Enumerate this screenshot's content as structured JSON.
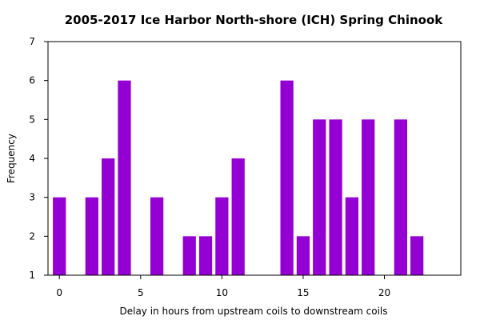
{
  "chart_data": {
    "type": "bar",
    "title": "2005-2017 Ice Harbor North-shore (ICH) Spring Chinook",
    "xlabel": "Delay in hours from upstream coils to downstream coils",
    "ylabel": "Frequency",
    "xlim": [
      -0.7,
      24.7
    ],
    "ylim": [
      1,
      7
    ],
    "xticks": [
      0,
      5,
      10,
      15,
      20
    ],
    "yticks": [
      1,
      2,
      3,
      4,
      5,
      6,
      7
    ],
    "bar_width": 0.8,
    "bar_color": "#9400D3",
    "grid": false,
    "x": [
      0,
      2,
      3,
      4,
      6,
      8,
      9,
      10,
      11,
      14,
      15,
      16,
      17,
      18,
      19,
      21,
      22
    ],
    "values": [
      3,
      3,
      4,
      6,
      3,
      2,
      2,
      3,
      4,
      6,
      2,
      5,
      5,
      3,
      5,
      5,
      2
    ]
  }
}
